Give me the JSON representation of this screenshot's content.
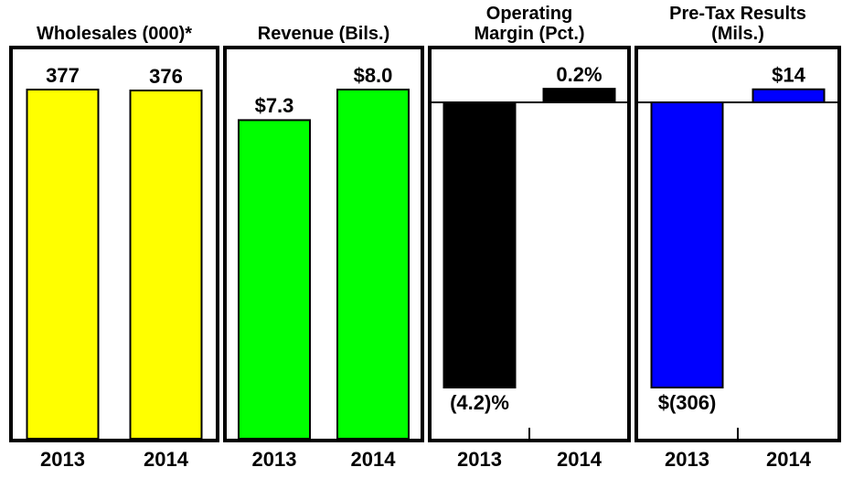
{
  "chart_data": [
    {
      "type": "bar",
      "title": "Wholesales (000)*",
      "categories": [
        "2013",
        "2014"
      ],
      "values": [
        377,
        376
      ],
      "color": "#ffff00"
    },
    {
      "type": "bar",
      "title": "Revenue (Bils.)",
      "categories": [
        "2013",
        "2014"
      ],
      "values": [
        7.3,
        8.0
      ],
      "value_labels": [
        "$7.3",
        "$8.0"
      ],
      "color": "#00ff00"
    },
    {
      "type": "bar",
      "title": "Operating Margin (Pct.)",
      "categories": [
        "2013",
        "2014"
      ],
      "values": [
        -4.2,
        0.2
      ],
      "value_labels": [
        "(4.2)%",
        "0.2%"
      ],
      "color": "#000000"
    },
    {
      "type": "bar",
      "title": "Pre-Tax Results (Mils.)",
      "categories": [
        "2013",
        "2014"
      ],
      "values": [
        -306,
        14
      ],
      "value_labels": [
        "$(306)",
        "$14"
      ],
      "color": "#0000ff"
    }
  ]
}
